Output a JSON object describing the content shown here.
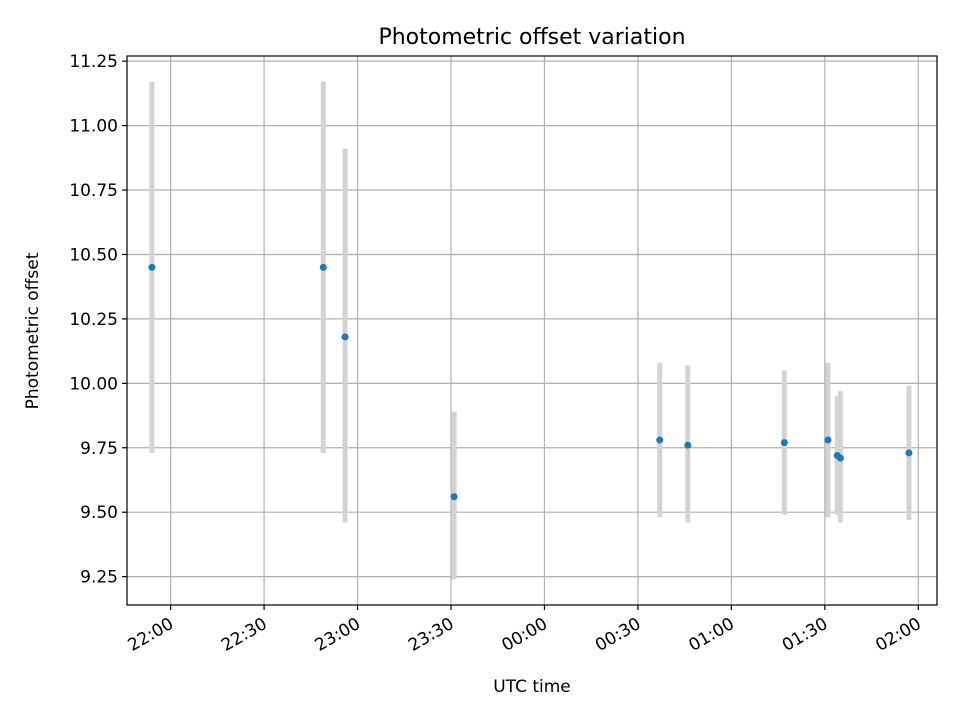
{
  "chart_data": {
    "type": "scatter",
    "title": "Photometric offset variation",
    "xlabel": "UTC time",
    "ylabel": "Photometric offset",
    "x_axis": "time",
    "xlim": [
      "21:46",
      "02:06"
    ],
    "ylim": [
      9.14,
      11.27
    ],
    "xticks": [
      "22:00",
      "22:30",
      "23:00",
      "23:30",
      "00:00",
      "00:30",
      "01:00",
      "01:30",
      "02:00"
    ],
    "xtick_labels": [
      "22:00",
      "22:30",
      "23:00",
      "23:30",
      "00:00",
      "00:30",
      "01:00",
      "01:30",
      "02:00"
    ],
    "xtick_rotation_deg": 30,
    "yticks": [
      9.25,
      9.5,
      9.75,
      10.0,
      10.25,
      10.5,
      10.75,
      11.0,
      11.25
    ],
    "ytick_labels": [
      "9.25",
      "9.50",
      "9.75",
      "10.00",
      "10.25",
      "10.50",
      "10.75",
      "11.00",
      "11.25"
    ],
    "grid": true,
    "colors": {
      "points": "#1f77b4",
      "error_bars": "#d3d3d3"
    },
    "points": [
      {
        "time": "21:54",
        "y": 10.45,
        "ylow": 9.73,
        "yhigh": 11.17
      },
      {
        "time": "22:49",
        "y": 10.45,
        "ylow": 9.73,
        "yhigh": 11.17
      },
      {
        "time": "22:56",
        "y": 10.18,
        "ylow": 9.46,
        "yhigh": 10.91
      },
      {
        "time": "23:31",
        "y": 9.56,
        "ylow": 9.24,
        "yhigh": 9.89
      },
      {
        "time": "00:37",
        "y": 9.78,
        "ylow": 9.48,
        "yhigh": 10.08
      },
      {
        "time": "00:46",
        "y": 9.76,
        "ylow": 9.46,
        "yhigh": 10.07
      },
      {
        "time": "01:17",
        "y": 9.77,
        "ylow": 9.49,
        "yhigh": 10.05
      },
      {
        "time": "01:31",
        "y": 9.78,
        "ylow": 9.48,
        "yhigh": 10.08
      },
      {
        "time": "01:34",
        "y": 9.72,
        "ylow": 9.49,
        "yhigh": 9.95
      },
      {
        "time": "01:35",
        "y": 9.71,
        "ylow": 9.46,
        "yhigh": 9.97
      },
      {
        "time": "01:57",
        "y": 9.73,
        "ylow": 9.47,
        "yhigh": 9.99
      }
    ]
  }
}
